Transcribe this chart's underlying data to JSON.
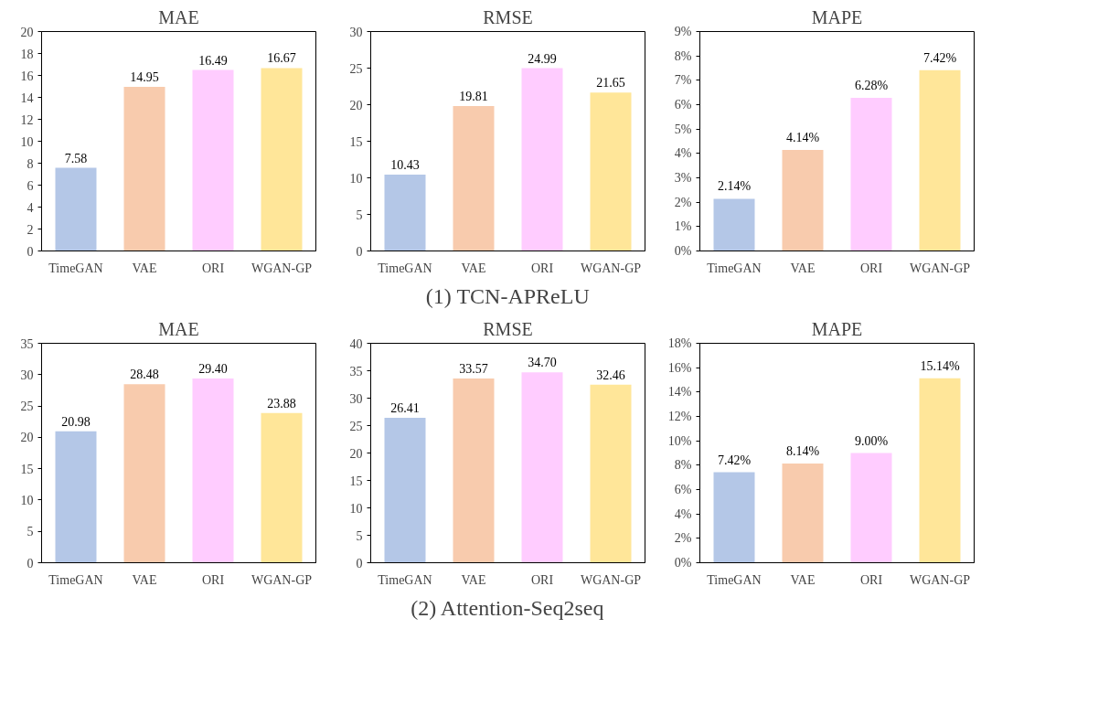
{
  "chart_data": [
    {
      "type": "bar",
      "title": "MAE",
      "categories": [
        "TimeGAN",
        "VAE",
        "ORI",
        "WGAN-GP"
      ],
      "values": [
        7.58,
        14.95,
        16.49,
        16.67
      ],
      "colors": [
        "#b4c7e7",
        "#f8cbad",
        "#ffccff",
        "#ffe699"
      ],
      "ylim": [
        0,
        20
      ],
      "yticks": [
        0,
        2,
        4,
        6,
        8,
        10,
        12,
        14,
        16,
        18,
        20
      ],
      "grid": false,
      "data_labels": true
    },
    {
      "type": "bar",
      "title": "RMSE",
      "categories": [
        "TimeGAN",
        "VAE",
        "ORI",
        "WGAN-GP"
      ],
      "values": [
        10.43,
        19.81,
        24.99,
        21.65
      ],
      "colors": [
        "#b4c7e7",
        "#f8cbad",
        "#ffccff",
        "#ffe699"
      ],
      "ylim": [
        0,
        30
      ],
      "yticks": [
        0,
        5,
        10,
        15,
        20,
        25,
        30
      ],
      "grid": false,
      "data_labels": true,
      "annotations": [
        "(1) TCN-APReLU"
      ]
    },
    {
      "type": "bar",
      "title": "MAPE",
      "categories": [
        "TimeGAN",
        "VAE",
        "ORI",
        "WGAN-GP"
      ],
      "values": [
        2.14,
        4.14,
        6.28,
        7.42
      ],
      "value_labels": [
        "2.14%",
        "4.14%",
        "6.28%",
        "7.42%"
      ],
      "colors": [
        "#b4c7e7",
        "#f8cbad",
        "#ffccff",
        "#ffe699"
      ],
      "ylim": [
        0,
        9
      ],
      "yticks": [
        {
          "value": 0,
          "label": "0%"
        },
        {
          "value": 1,
          "label": "1%"
        },
        {
          "value": 2,
          "label": "2%"
        },
        {
          "value": 3,
          "label": "3%"
        },
        {
          "value": 4,
          "label": "4%"
        },
        {
          "value": 5,
          "label": "5%"
        },
        {
          "value": 6,
          "label": "6%"
        },
        {
          "value": 7,
          "label": "7%"
        },
        {
          "value": 8,
          "label": "8%"
        },
        {
          "value": 9,
          "label": "9%"
        }
      ],
      "grid": false
    },
    {
      "type": "bar",
      "title": "MAE",
      "categories": [
        "TimeGAN",
        "VAE",
        "ORI",
        "WGAN-GP"
      ],
      "values": [
        20.98,
        28.48,
        29.4,
        23.88
      ],
      "value_labels": [
        "20.98",
        "28.48",
        "29.40",
        "23.88"
      ],
      "colors": [
        "#b4c7e7",
        "#f8cbad",
        "#ffccff",
        "#ffe699"
      ],
      "ylim": [
        0,
        35
      ],
      "yticks": [
        0,
        5,
        10,
        15,
        20,
        25,
        30,
        35
      ],
      "grid": false
    },
    {
      "type": "bar",
      "title": "RMSE",
      "categories": [
        "TimeGAN",
        "VAE",
        "ORI",
        "WGAN-GP"
      ],
      "values": [
        26.41,
        33.57,
        34.7,
        32.46
      ],
      "value_labels": [
        "26.41",
        "33.57",
        "34.70",
        "32.46"
      ],
      "colors": [
        "#b4c7e7",
        "#f8cbad",
        "#ffccff",
        "#ffe699"
      ],
      "ylim": [
        0,
        40
      ],
      "yticks": [
        0,
        5,
        10,
        15,
        20,
        25,
        30,
        35,
        40
      ],
      "grid": false,
      "annotations": [
        "(2) Attention-Seq2seq"
      ]
    },
    {
      "type": "bar",
      "title": "MAPE",
      "categories": [
        "TimeGAN",
        "VAE",
        "ORI",
        "WGAN-GP"
      ],
      "values": [
        7.42,
        8.14,
        9.0,
        15.14
      ],
      "value_labels": [
        "7.42%",
        "8.14%",
        "9.00%",
        "15.14%"
      ],
      "colors": [
        "#b4c7e7",
        "#f8cbad",
        "#ffccff",
        "#ffe699"
      ],
      "ylim": [
        0,
        18
      ],
      "yticks": [
        {
          "value": 0,
          "label": "0%"
        },
        {
          "value": 2,
          "label": "2%"
        },
        {
          "value": 4,
          "label": "4%"
        },
        {
          "value": 6,
          "label": "6%"
        },
        {
          "value": 8,
          "label": "8%"
        },
        {
          "value": 10,
          "label": "10%"
        },
        {
          "value": 12,
          "label": "12%"
        },
        {
          "value": 14,
          "label": "14%"
        },
        {
          "value": 16,
          "label": "16%"
        },
        {
          "value": 18,
          "label": "18%"
        }
      ],
      "grid": false
    }
  ]
}
